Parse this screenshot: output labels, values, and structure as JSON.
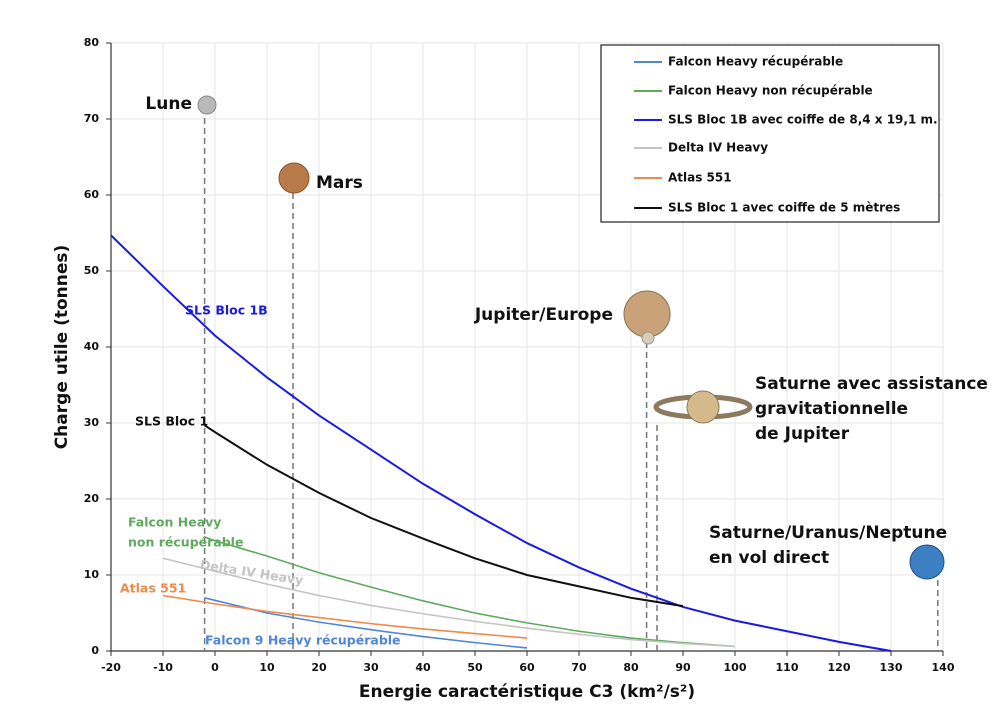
{
  "chart_data": {
    "type": "line",
    "xlabel": "Energie caractéristique C3 (km²/s²)",
    "ylabel": "Charge utile (tonnes)",
    "xlim": [
      -20,
      140
    ],
    "xticks": [
      -20,
      -10,
      0,
      10,
      20,
      30,
      40,
      50,
      60,
      70,
      80,
      90,
      100,
      110,
      120,
      130,
      140
    ],
    "ylim": [
      0,
      80
    ],
    "yticks": [
      0,
      10,
      20,
      30,
      40,
      50,
      60,
      70,
      80
    ],
    "grid": true,
    "legend": "upper right",
    "series": [
      {
        "name": "Falcon Heavy récupérable",
        "color": "#4f86d8",
        "x": [
          -2,
          10,
          20,
          30,
          40,
          50,
          60
        ],
        "values": [
          7.0,
          5.0,
          3.8,
          2.8,
          1.9,
          1.1,
          0.4
        ]
      },
      {
        "name": "Falcon Heavy non récupérable",
        "color": "#5faa5f",
        "x": [
          -2,
          0,
          10,
          20,
          30,
          40,
          50,
          60,
          70,
          80,
          90,
          100
        ],
        "values": [
          15.0,
          14.5,
          12.5,
          10.3,
          8.4,
          6.6,
          5.0,
          3.7,
          2.6,
          1.7,
          1.1,
          0.6
        ]
      },
      {
        "name": "SLS Bloc 1B avec coiffe de 8,4 x 19,1 m.",
        "color": "#1a1ae6",
        "x": [
          -20,
          -10,
          0,
          10,
          20,
          30,
          40,
          50,
          60,
          70,
          80,
          90,
          100,
          110,
          120,
          130
        ],
        "values": [
          54.7,
          48,
          41.5,
          36,
          31,
          26.5,
          22,
          18,
          14.2,
          11,
          8.2,
          5.8,
          4,
          2.6,
          1.2,
          0
        ]
      },
      {
        "name": "Delta IV Heavy",
        "color": "#c4c4c4",
        "x": [
          -10,
          0,
          10,
          20,
          30,
          40,
          50,
          60,
          70,
          80,
          90,
          100
        ],
        "values": [
          12.2,
          10.5,
          8.8,
          7.3,
          6.0,
          4.9,
          3.9,
          3.0,
          2.2,
          1.5,
          1.0,
          0.6
        ]
      },
      {
        "name": "Atlas 551",
        "color": "#ee8a4a",
        "x": [
          -10,
          0,
          10,
          20,
          30,
          40,
          50,
          60
        ],
        "values": [
          7.3,
          6.2,
          5.2,
          4.4,
          3.6,
          2.9,
          2.3,
          1.7
        ]
      },
      {
        "name": "SLS Bloc 1 avec coiffe de 5 mètres",
        "color": "#111111",
        "x": [
          -2,
          0,
          10,
          20,
          30,
          40,
          50,
          60,
          70,
          80,
          90
        ],
        "values": [
          29.7,
          28.8,
          24.5,
          20.8,
          17.5,
          14.8,
          12.2,
          10,
          8.5,
          7,
          5.9
        ]
      }
    ],
    "annotations": [
      [
        "SLS Bloc 1B"
      ],
      [
        "SLS Bloc 1"
      ],
      [
        "Falcon Heavy",
        "non récupérable"
      ],
      [
        "Delta IV Heavy"
      ],
      [
        "Atlas 551"
      ],
      [
        "Falcon 9 Heavy récupérable"
      ]
    ],
    "destinations": [
      {
        "lines": [
          "Lune"
        ],
        "c3": -2
      },
      {
        "lines": [
          "Mars"
        ],
        "c3": 15
      },
      {
        "lines": [
          "Jupiter/Europe"
        ],
        "c3": 83
      },
      {
        "lines": [
          "Saturne avec assistance",
          "gravitationnelle",
          "de Jupiter"
        ],
        "c3": 85
      },
      {
        "lines": [
          "Saturne/Uranus/Neptune",
          "en vol direct"
        ],
        "c3": 139
      }
    ]
  }
}
